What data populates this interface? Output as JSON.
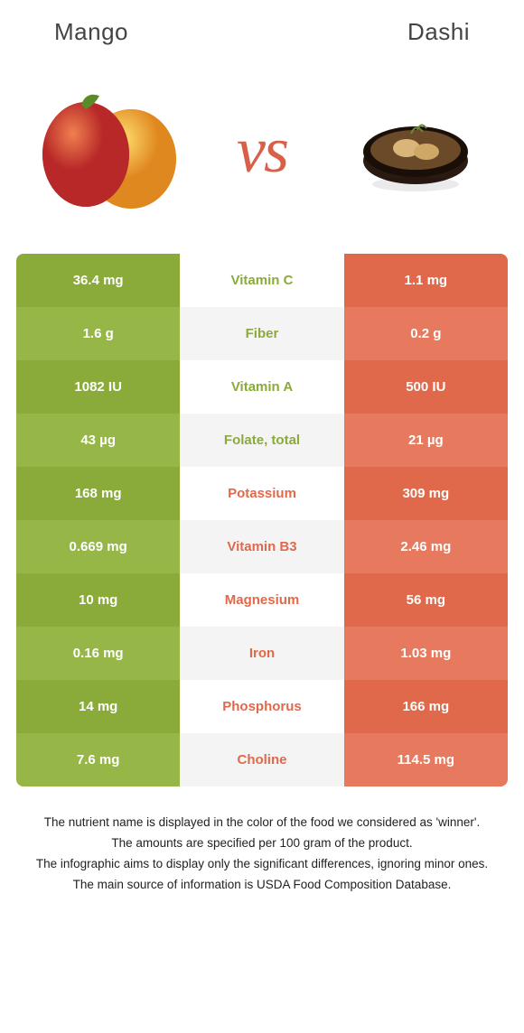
{
  "header": {
    "left_title": "Mango",
    "right_title": "Dashi"
  },
  "hero": {
    "vs_label": "vs"
  },
  "colors": {
    "left": "#8aab3a",
    "left_alt": "#97b648",
    "right": "#e1694b",
    "right_alt": "#e77a5e",
    "mid_text_left": "#8aab3a",
    "mid_text_right": "#e1694b",
    "mid_bg_odd": "#ffffff",
    "mid_bg_even": "#f4f4f4"
  },
  "rows": [
    {
      "left": "36.4 mg",
      "label": "Vitamin C",
      "right": "1.1 mg",
      "winner": "left"
    },
    {
      "left": "1.6 g",
      "label": "Fiber",
      "right": "0.2 g",
      "winner": "left"
    },
    {
      "left": "1082 IU",
      "label": "Vitamin A",
      "right": "500 IU",
      "winner": "left"
    },
    {
      "left": "43 µg",
      "label": "Folate, total",
      "right": "21 µg",
      "winner": "left"
    },
    {
      "left": "168 mg",
      "label": "Potassium",
      "right": "309 mg",
      "winner": "right"
    },
    {
      "left": "0.669 mg",
      "label": "Vitamin B3",
      "right": "2.46 mg",
      "winner": "right"
    },
    {
      "left": "10 mg",
      "label": "Magnesium",
      "right": "56 mg",
      "winner": "right"
    },
    {
      "left": "0.16 mg",
      "label": "Iron",
      "right": "1.03 mg",
      "winner": "right"
    },
    {
      "left": "14 mg",
      "label": "Phosphorus",
      "right": "166 mg",
      "winner": "right"
    },
    {
      "left": "7.6 mg",
      "label": "Choline",
      "right": "114.5 mg",
      "winner": "right"
    }
  ],
  "footnotes": [
    "The nutrient name is displayed in the color of the food we considered as 'winner'.",
    "The amounts are specified per 100 gram of the product.",
    "The infographic aims to display only the significant differences, ignoring minor ones.",
    "The main source of information is USDA Food Composition Database."
  ]
}
